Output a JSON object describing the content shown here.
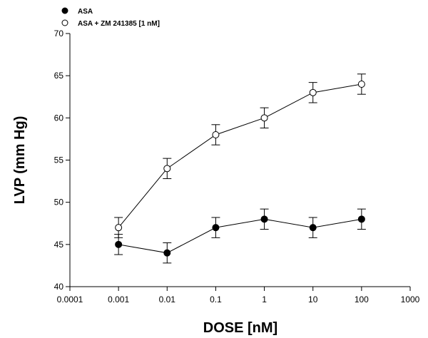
{
  "chart_data": {
    "type": "line",
    "title": "",
    "xlabel": "DOSE [nM]",
    "ylabel": "LVP (mm Hg)",
    "x_scale": "log",
    "xlim": [
      0.0001,
      1000
    ],
    "ylim": [
      40,
      70
    ],
    "x_ticks": [
      0.0001,
      0.001,
      0.01,
      0.1,
      1,
      10,
      100,
      1000
    ],
    "x_tick_labels": [
      "0.0001",
      "0.001",
      "0.01",
      "0.1",
      "1",
      "10",
      "100",
      "1000"
    ],
    "y_ticks": [
      40,
      45,
      50,
      55,
      60,
      65,
      70
    ],
    "y_tick_labels": [
      "40",
      "45",
      "50",
      "55",
      "60",
      "65",
      "70"
    ],
    "grid": false,
    "legend_position": "top-left",
    "x": [
      0.001,
      0.01,
      0.1,
      1,
      10,
      100
    ],
    "series": [
      {
        "name": "ASA",
        "marker": "filled-circle",
        "values": [
          45,
          44,
          47,
          48,
          47,
          48
        ],
        "errors": [
          1.2,
          1.2,
          1.2,
          1.2,
          1.2,
          1.2
        ]
      },
      {
        "name": "ASA + ZM 241385 [1 nM]",
        "marker": "open-circle",
        "values": [
          47,
          54,
          58,
          60,
          63,
          64
        ],
        "errors": [
          1.2,
          1.2,
          1.2,
          1.2,
          1.2,
          1.2
        ]
      }
    ]
  }
}
